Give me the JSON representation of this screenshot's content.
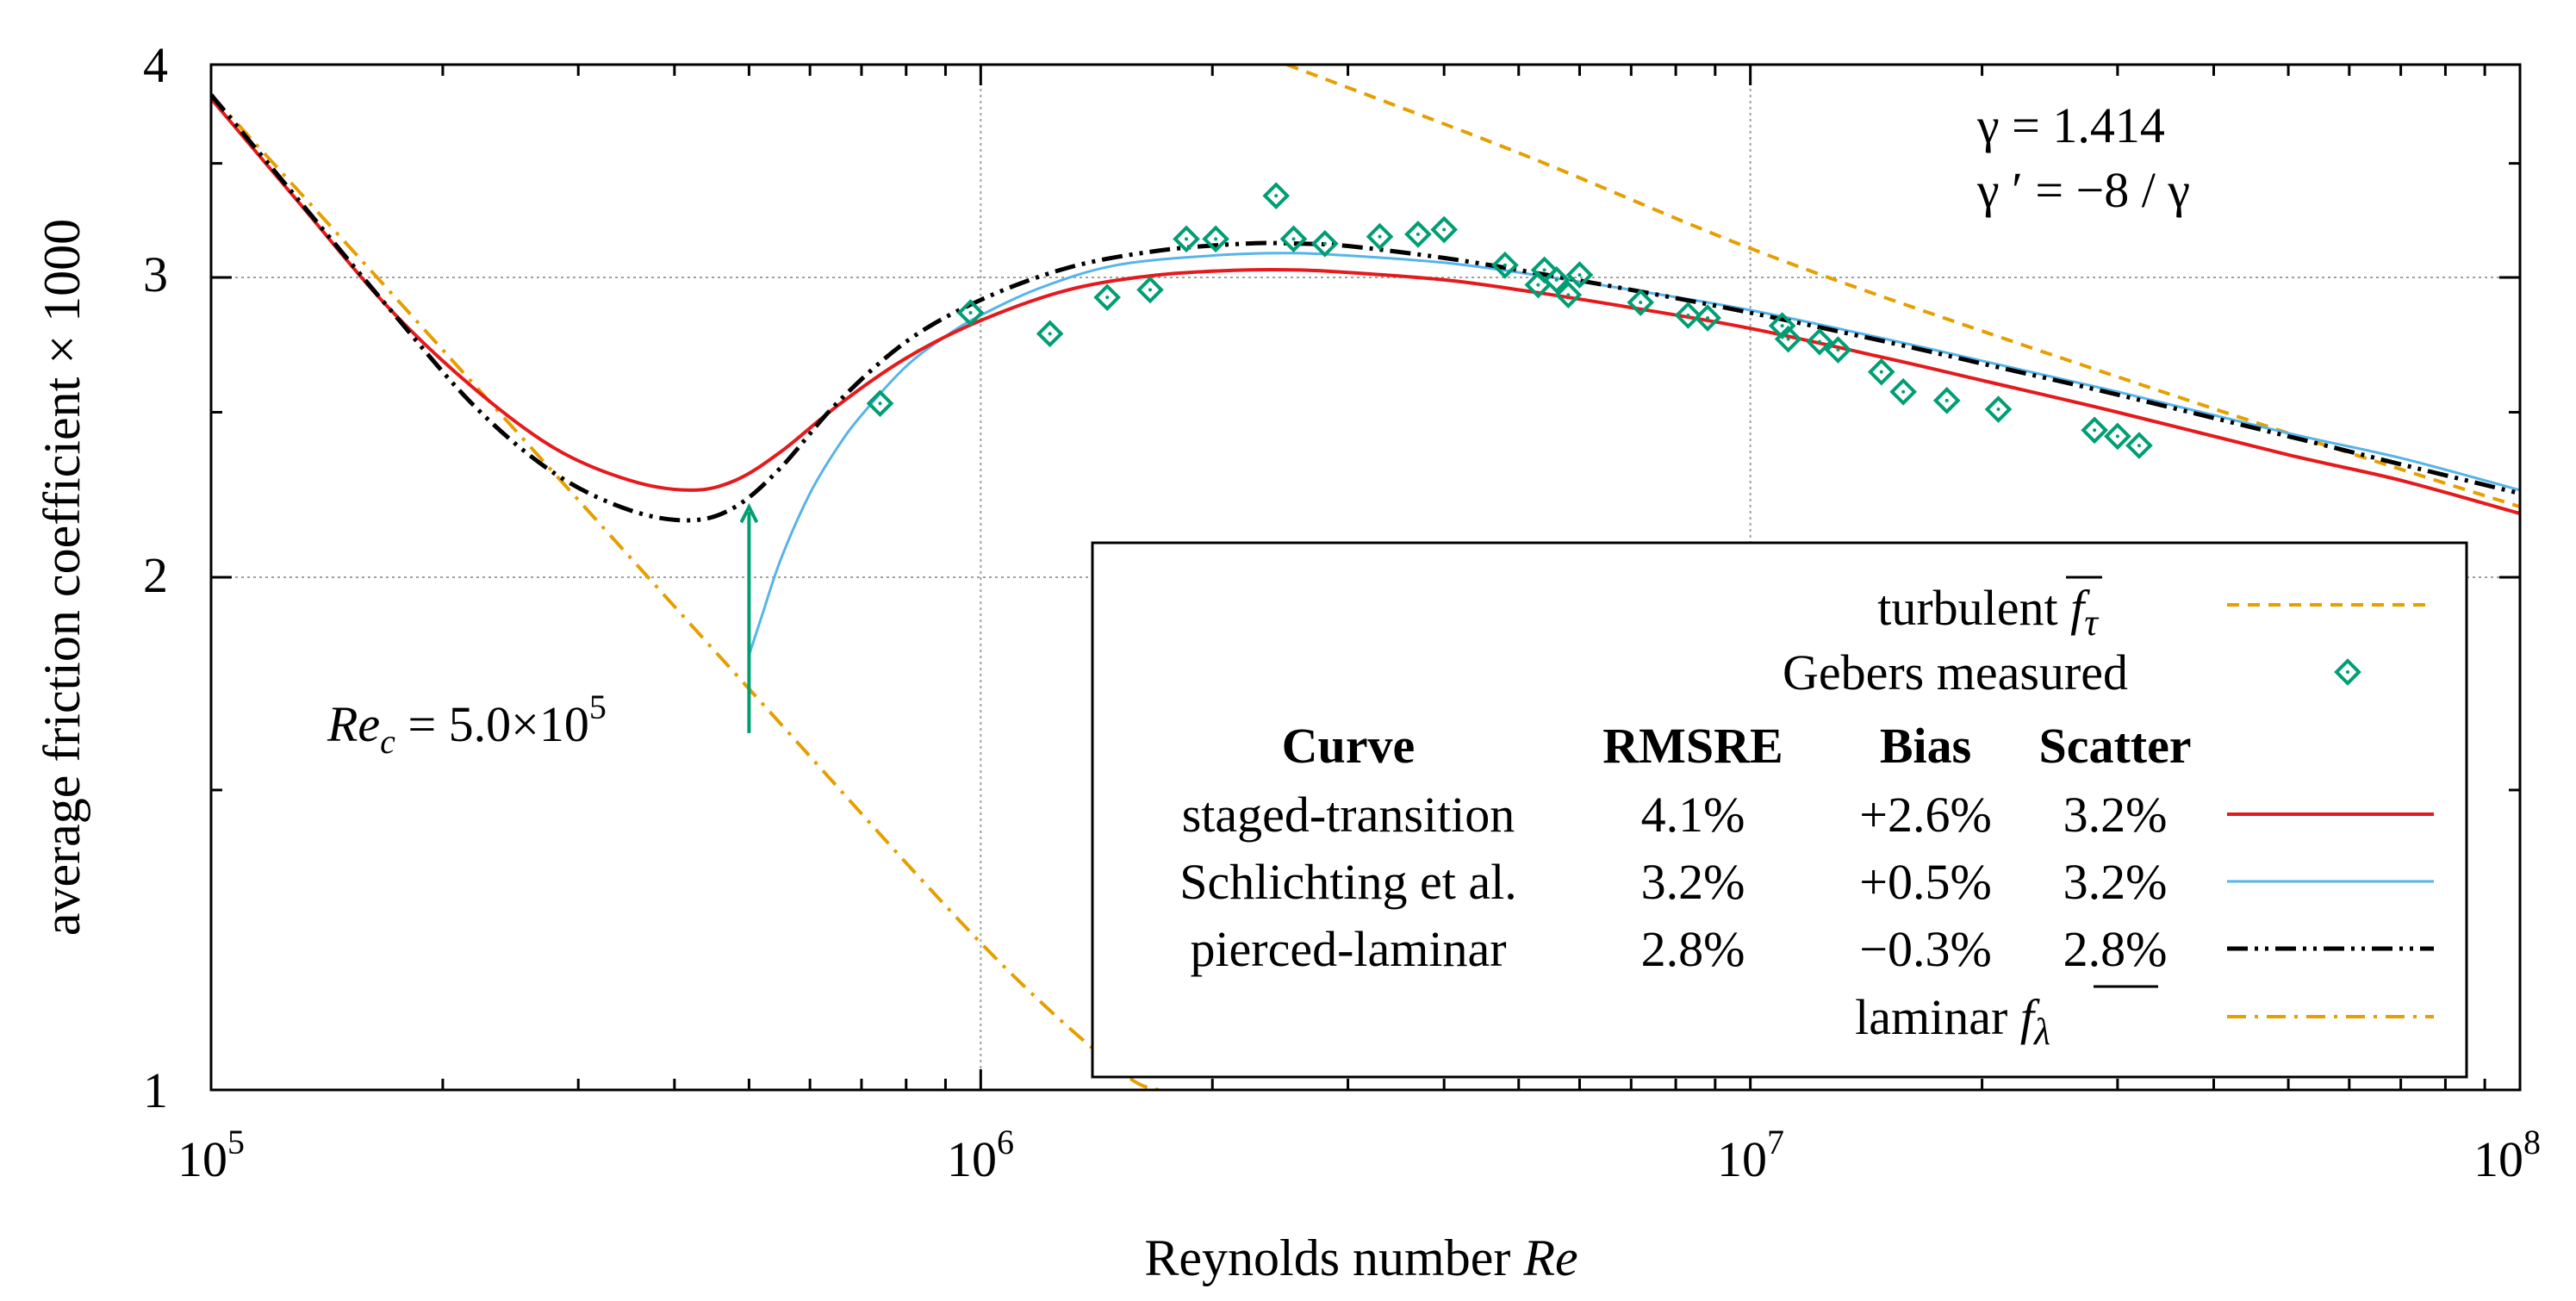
{
  "chart_data": {
    "type": "scatter",
    "xlabel": "Reynolds number",
    "xlabel_symbol": "Re",
    "ylabel": "average friction coefficient × 1000",
    "x_scale": "log",
    "y_scale": "log",
    "xlim": [
      100000,
      100000000
    ],
    "ylim": [
      1,
      4
    ],
    "x_ticks": [
      {
        "base": "10",
        "exp": "5",
        "value": 100000
      },
      {
        "base": "10",
        "exp": "6",
        "value": 1000000
      },
      {
        "base": "10",
        "exp": "7",
        "value": 10000000
      },
      {
        "base": "10",
        "exp": "8",
        "value": 100000000
      }
    ],
    "y_ticks": [
      {
        "label": "1",
        "value": 1
      },
      {
        "label": "2",
        "value": 2
      },
      {
        "label": "3",
        "value": 3
      },
      {
        "label": "4",
        "value": 4
      }
    ],
    "grid": true,
    "legend_position": "bottom-right",
    "params": {
      "gamma_line": "γ  = 1.414",
      "gamma_prime_line": "γ ′ = −8 / γ"
    },
    "annotation": {
      "text_re": "Re",
      "text_sub": "c",
      "text_eq": " = 5.0×10",
      "text_exp": "5",
      "x": 500000,
      "y_from": 1.62,
      "y_to": 2.2,
      "color": "#009e73"
    },
    "legend": {
      "turbulent_label": "turbulent",
      "turbulent_symbol": "f",
      "turbulent_sub": "τ",
      "gebers_label": "Gebers measured",
      "laminar_label": "laminar",
      "laminar_symbol": "f",
      "laminar_sub": "λ",
      "headers": [
        "Curve",
        "RMSRE",
        "Bias",
        "Scatter"
      ],
      "rows": [
        {
          "curve": "staged-transition",
          "rmsre": "4.1%",
          "bias": "+2.6%",
          "scatter": "3.2%"
        },
        {
          "curve": "Schlichting et al.",
          "rmsre": "3.2%",
          "bias": "+0.5%",
          "scatter": "3.2%"
        },
        {
          "curve": "pierced-laminar",
          "rmsre": "2.8%",
          "bias": "−0.3%",
          "scatter": "2.8%"
        }
      ]
    },
    "colors": {
      "staged": "#e41a1c",
      "schlichting": "#56b4e9",
      "pierced": "#000000",
      "turbulent": "#e69f00",
      "laminar": "#e69f00",
      "gebers": "#009e73"
    },
    "series": [
      {
        "name": "staged-transition",
        "x": [
          100000,
          130000,
          170000,
          220000,
          280000,
          350000,
          420000,
          480000,
          550000,
          650000,
          800000,
          1000000,
          1300000,
          1700000,
          2200000,
          2600000,
          3000000,
          4000000,
          5000000,
          7000000,
          10000000,
          15000000,
          20000000,
          30000000,
          50000000,
          70000000,
          100000000
        ],
        "y": [
          3.82,
          3.32,
          2.88,
          2.58,
          2.38,
          2.28,
          2.25,
          2.28,
          2.37,
          2.52,
          2.69,
          2.83,
          2.95,
          3.01,
          3.03,
          3.03,
          3.02,
          2.99,
          2.95,
          2.88,
          2.8,
          2.69,
          2.61,
          2.5,
          2.36,
          2.28,
          2.18
        ]
      },
      {
        "name": "Schlichting et al.",
        "x": [
          500000,
          520000,
          550000,
          600000,
          650000,
          700000,
          800000,
          900000,
          1000000,
          1200000,
          1500000,
          2000000,
          2500000,
          3000000,
          4000000,
          5000000,
          7000000,
          10000000,
          15000000,
          20000000,
          30000000,
          50000000,
          70000000,
          100000000
        ],
        "y": [
          1.8,
          1.9,
          2.05,
          2.24,
          2.38,
          2.49,
          2.66,
          2.77,
          2.85,
          2.96,
          3.05,
          3.09,
          3.1,
          3.09,
          3.06,
          3.02,
          2.95,
          2.87,
          2.76,
          2.68,
          2.57,
          2.43,
          2.35,
          2.25
        ]
      },
      {
        "name": "pierced-laminar",
        "x": [
          100000,
          130000,
          170000,
          220000,
          280000,
          350000,
          420000,
          480000,
          550000,
          650000,
          800000,
          1000000,
          1300000,
          1700000,
          2200000,
          2600000,
          3000000,
          4000000,
          5000000,
          7000000,
          10000000,
          15000000,
          20000000,
          30000000,
          50000000,
          70000000,
          100000000
        ],
        "y": [
          3.84,
          3.33,
          2.88,
          2.52,
          2.3,
          2.19,
          2.16,
          2.2,
          2.32,
          2.53,
          2.75,
          2.91,
          3.04,
          3.11,
          3.14,
          3.14,
          3.13,
          3.08,
          3.03,
          2.95,
          2.86,
          2.75,
          2.67,
          2.56,
          2.42,
          2.33,
          2.24
        ]
      },
      {
        "name": "turbulent",
        "x": [
          2500000,
          5000000,
          10000000,
          20000000,
          50000000,
          100000000
        ],
        "y": [
          4.0,
          3.55,
          3.12,
          2.79,
          2.43,
          2.2
        ]
      },
      {
        "name": "laminar",
        "x": [
          100000,
          200000,
          500000,
          1000000,
          1500000,
          1700000
        ],
        "y": [
          3.84,
          2.72,
          1.72,
          1.22,
          1.03,
          1.0
        ]
      },
      {
        "name": "Gebers measured",
        "x": [
          740000,
          970000,
          1230000,
          1460000,
          1660000,
          1850000,
          2020000,
          2420000,
          2550000,
          2800000,
          3300000,
          3700000,
          4000000,
          4800000,
          5300000,
          5400000,
          5600000,
          5800000,
          6000000,
          7200000,
          8300000,
          8800000,
          11000000,
          11200000,
          12300000,
          13000000,
          14800000,
          15800000,
          18000000,
          21000000,
          28000000,
          30000000,
          32000000
        ],
        "y": [
          2.53,
          2.86,
          2.78,
          2.92,
          2.95,
          3.16,
          3.16,
          3.35,
          3.16,
          3.14,
          3.17,
          3.18,
          3.2,
          3.05,
          2.97,
          3.03,
          2.99,
          2.93,
          3.01,
          2.9,
          2.85,
          2.84,
          2.81,
          2.76,
          2.75,
          2.72,
          2.64,
          2.57,
          2.54,
          2.51,
          2.44,
          2.42,
          2.39
        ]
      }
    ]
  }
}
